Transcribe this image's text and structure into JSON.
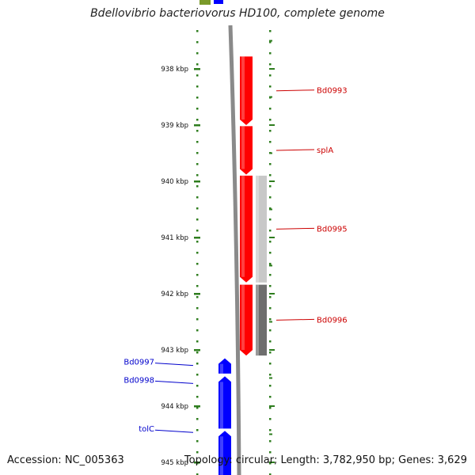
{
  "title": "Bdellovibrio bacteriovorus HD100, complete genome",
  "accession_text": "Accession: NC_005363",
  "summary_text": "Topology: circular; Length: 3,782,950 bp; Genes: 3,629",
  "ruler": {
    "unit": "kbp",
    "ticks": [
      938,
      939,
      940,
      941,
      942,
      943,
      944,
      945
    ],
    "labels": [
      "938 kbp",
      "939 kbp",
      "940 kbp",
      "941 kbp",
      "942 kbp",
      "943 kbp",
      "944 kbp",
      "945 kbp"
    ]
  },
  "colors": {
    "forward_strand": "#ff0000",
    "reverse_strand": "#0000ff",
    "feature_light": "#c8c8c8",
    "feature_dark": "#6e6e6e",
    "backbone": "#8a8a8a",
    "tick": "#2e7d1e",
    "label_forward": "#cc0000",
    "label_reverse": "#0000cc",
    "green_feature": "#7a9a2a"
  },
  "genes": [
    {
      "name": "Bd0993",
      "strand": "forward",
      "start_kbp": 937.78,
      "end_kbp": 939.0
    },
    {
      "name": "splA",
      "strand": "forward",
      "start_kbp": 939.02,
      "end_kbp": 939.88
    },
    {
      "name": "Bd0995",
      "strand": "forward",
      "start_kbp": 939.9,
      "end_kbp": 941.8
    },
    {
      "name": "Bd0996",
      "strand": "forward",
      "start_kbp": 941.84,
      "end_kbp": 943.1
    },
    {
      "name": "Bd0997",
      "strand": "reverse",
      "start_kbp": 943.15,
      "end_kbp": 943.42
    },
    {
      "name": "Bd0998",
      "strand": "reverse",
      "start_kbp": 943.47,
      "end_kbp": 944.4
    },
    {
      "name": "tolC",
      "strand": "reverse",
      "start_kbp": 944.44,
      "end_kbp": 945.3
    }
  ],
  "features": [
    {
      "tone": "light",
      "start_kbp": 939.9,
      "end_kbp": 941.8
    },
    {
      "tone": "dark",
      "start_kbp": 941.84,
      "end_kbp": 943.1
    }
  ]
}
